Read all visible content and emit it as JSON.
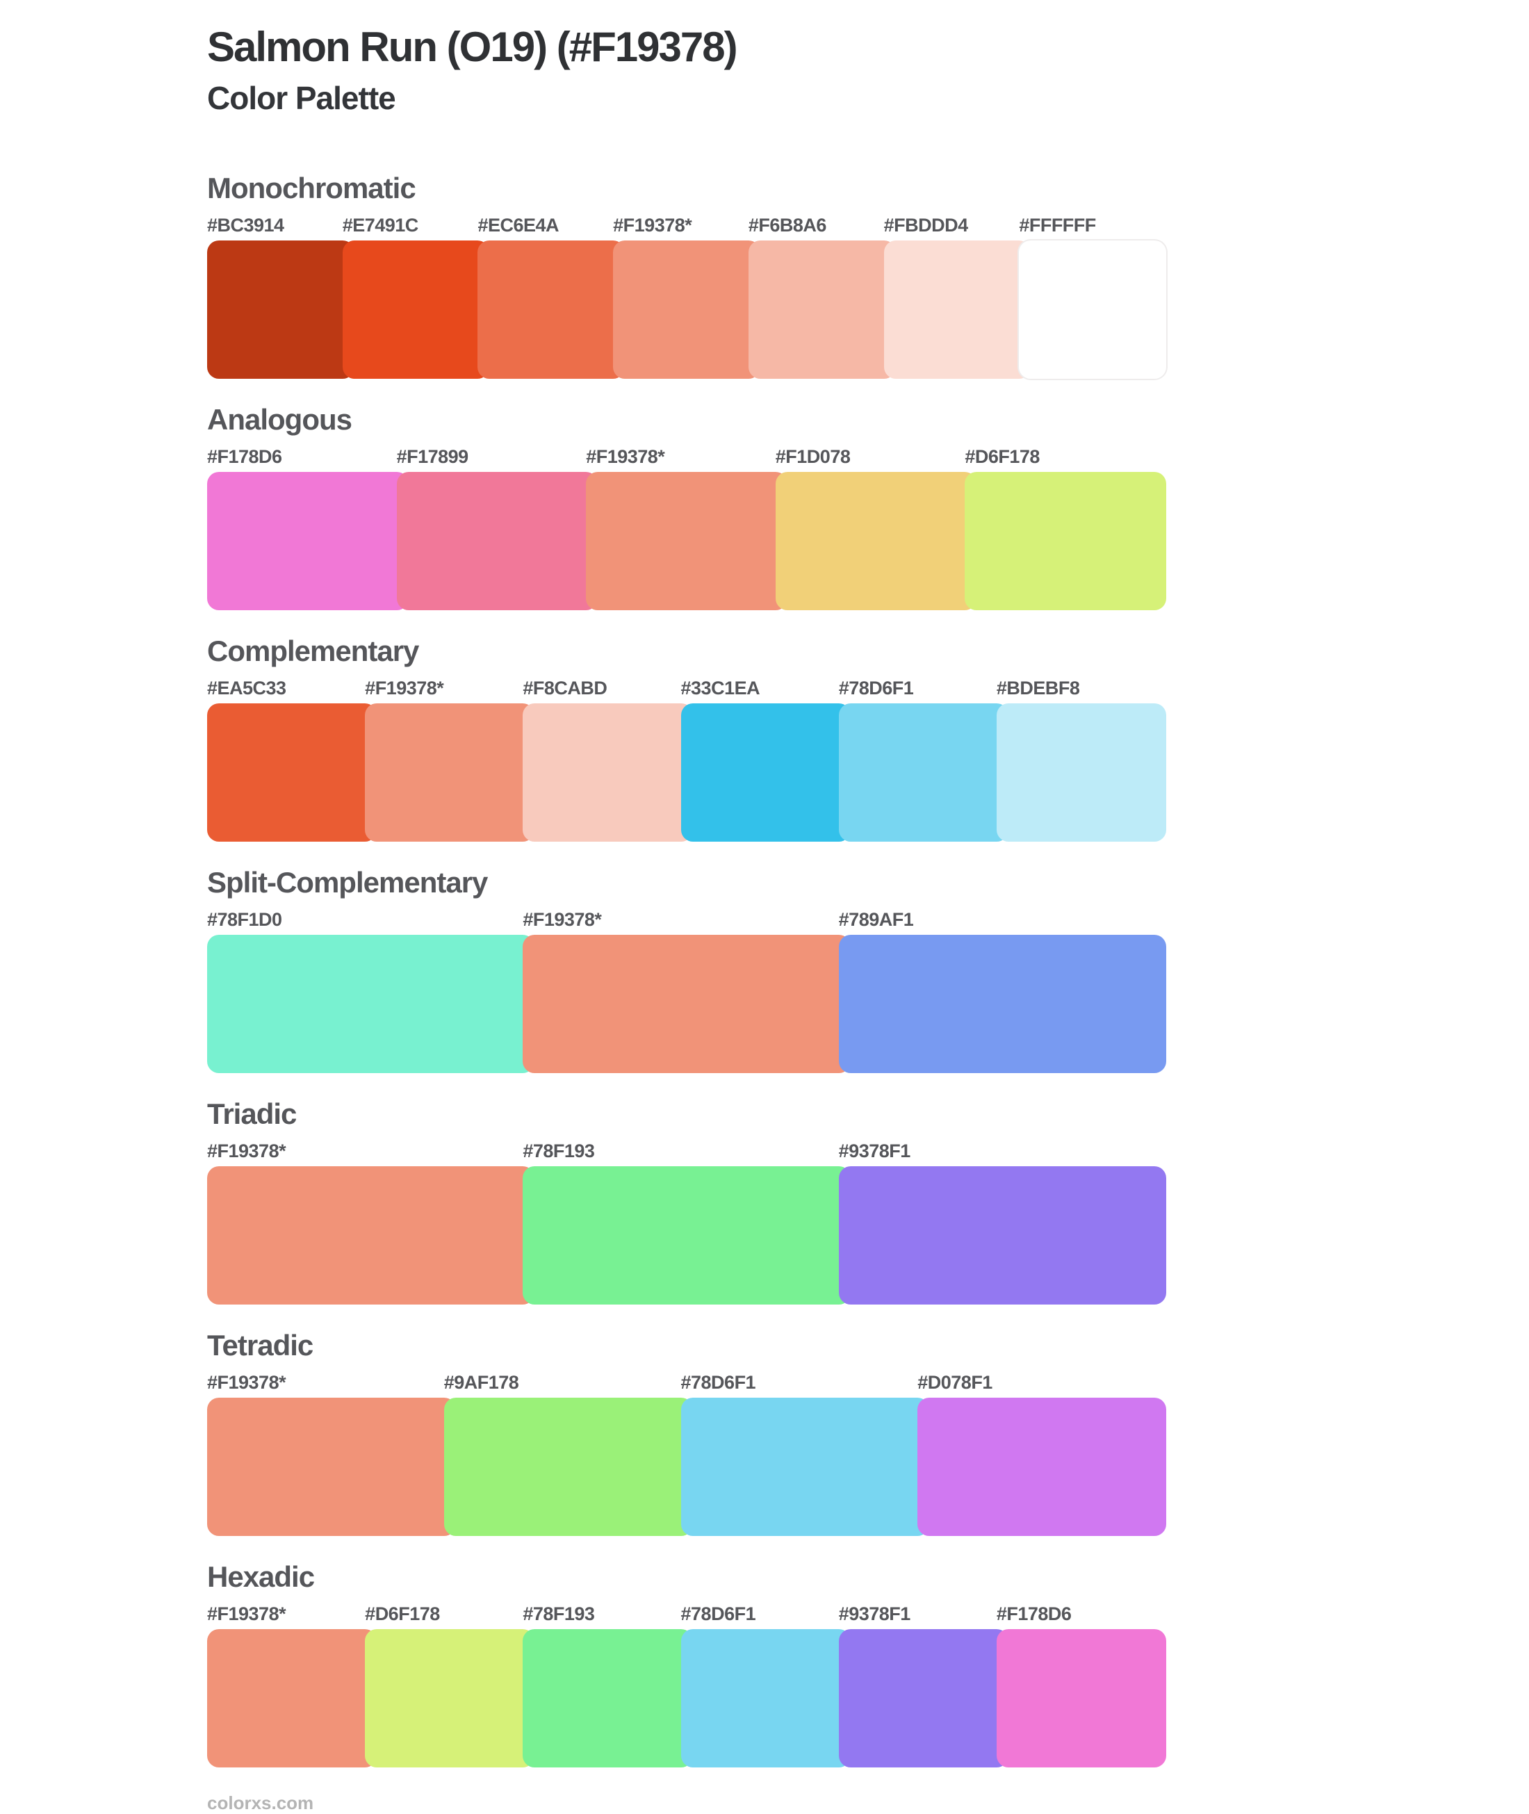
{
  "page": {
    "title": "Salmon Run (O19) (#F19378)",
    "subtitle": "Color Palette",
    "footer_link": "colorxs.com",
    "base_color": "#F19378",
    "heading_text_color": "#55565A",
    "title_text_color": "#2F3134",
    "footer_text_color": "#B4B4B4"
  },
  "sections": [
    {
      "name": "Monochromatic",
      "swatches": [
        {
          "label": "#BC3914",
          "color": "#BC3914",
          "is_base": false
        },
        {
          "label": "#E7491C",
          "color": "#E7491C",
          "is_base": false
        },
        {
          "label": "#EC6E4A",
          "color": "#EC6E4A",
          "is_base": false
        },
        {
          "label": "#F19378*",
          "color": "#F19378",
          "is_base": true
        },
        {
          "label": "#F6B8A6",
          "color": "#F6B8A6",
          "is_base": false
        },
        {
          "label": "#FBDDD4",
          "color": "#FBDDD4",
          "is_base": false
        },
        {
          "label": "#FFFFFF",
          "color": "#FFFFFF",
          "is_base": false
        }
      ]
    },
    {
      "name": "Analogous",
      "swatches": [
        {
          "label": "#F178D6",
          "color": "#F178D6",
          "is_base": false
        },
        {
          "label": "#F17899",
          "color": "#F17899",
          "is_base": false
        },
        {
          "label": "#F19378*",
          "color": "#F19378",
          "is_base": true
        },
        {
          "label": "#F1D078",
          "color": "#F1D078",
          "is_base": false
        },
        {
          "label": "#D6F178",
          "color": "#D6F178",
          "is_base": false
        }
      ]
    },
    {
      "name": "Complementary",
      "swatches": [
        {
          "label": "#EA5C33",
          "color": "#EA5C33",
          "is_base": false
        },
        {
          "label": "#F19378*",
          "color": "#F19378",
          "is_base": true
        },
        {
          "label": "#F8CABD",
          "color": "#F8CABD",
          "is_base": false
        },
        {
          "label": "#33C1EA",
          "color": "#33C1EA",
          "is_base": false
        },
        {
          "label": "#78D6F1",
          "color": "#78D6F1",
          "is_base": false
        },
        {
          "label": "#BDEBF8",
          "color": "#BDEBF8",
          "is_base": false
        }
      ]
    },
    {
      "name": "Split-Complementary",
      "swatches": [
        {
          "label": "#78F1D0",
          "color": "#78F1D0",
          "is_base": false
        },
        {
          "label": "#F19378*",
          "color": "#F19378",
          "is_base": true
        },
        {
          "label": "#789AF1",
          "color": "#789AF1",
          "is_base": false
        }
      ]
    },
    {
      "name": "Triadic",
      "swatches": [
        {
          "label": "#F19378*",
          "color": "#F19378",
          "is_base": true
        },
        {
          "label": "#78F193",
          "color": "#78F193",
          "is_base": false
        },
        {
          "label": "#9378F1",
          "color": "#9378F1",
          "is_base": false
        }
      ]
    },
    {
      "name": "Tetradic",
      "swatches": [
        {
          "label": "#F19378*",
          "color": "#F19378",
          "is_base": true
        },
        {
          "label": "#9AF178",
          "color": "#9AF178",
          "is_base": false
        },
        {
          "label": "#78D6F1",
          "color": "#78D6F1",
          "is_base": false
        },
        {
          "label": "#D078F1",
          "color": "#D078F1",
          "is_base": false
        }
      ]
    },
    {
      "name": "Hexadic",
      "swatches": [
        {
          "label": "#F19378*",
          "color": "#F19378",
          "is_base": true
        },
        {
          "label": "#D6F178",
          "color": "#D6F178",
          "is_base": false
        },
        {
          "label": "#78F193",
          "color": "#78F193",
          "is_base": false
        },
        {
          "label": "#78D6F1",
          "color": "#78D6F1",
          "is_base": false
        },
        {
          "label": "#9378F1",
          "color": "#9378F1",
          "is_base": false
        },
        {
          "label": "#F178D6",
          "color": "#F178D6",
          "is_base": false
        }
      ]
    }
  ]
}
